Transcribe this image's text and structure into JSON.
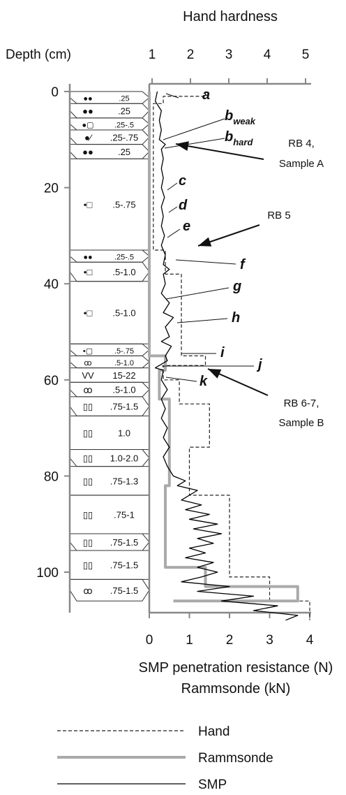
{
  "chart_data": {
    "type": "line",
    "top_axis": {
      "title": "Hand hardness",
      "ticks": [
        "1",
        "2",
        "3",
        "4",
        "5"
      ]
    },
    "depth_axis": {
      "title": "Depth (cm)",
      "ticks": [
        0,
        20,
        40,
        60,
        80,
        100
      ],
      "ylim": [
        0,
        110
      ],
      "inverted": true
    },
    "bottom_axis": {
      "title_line1": "SMP penetration resistance (N)",
      "title_line2": "Rammsonde (kN)",
      "ticks": [
        0,
        1,
        2,
        3,
        4
      ],
      "xlim": [
        0,
        4
      ]
    },
    "layers": [
      {
        "top": 0,
        "bottom": 2.5,
        "shape": "round",
        "symbols": "●●",
        "size": ".25"
      },
      {
        "top": 2.5,
        "bottom": 5.5,
        "shape": "round",
        "symbols": "●●",
        "size": ".25"
      },
      {
        "top": 5.5,
        "bottom": 8,
        "shape": "faceted",
        "symbols": "●▢",
        "size": ".25-.5"
      },
      {
        "top": 8,
        "bottom": 11,
        "shape": "mixed",
        "symbols": "●⁄",
        "size": ".25-.75"
      },
      {
        "top": 11,
        "bottom": 14,
        "shape": "round",
        "symbols": "●●",
        "size": ".25"
      },
      {
        "top": 14,
        "bottom": 33,
        "shape": "mixed",
        "symbols": "•□",
        "size": ".5-.75"
      },
      {
        "top": 33,
        "bottom": 35.5,
        "shape": "round",
        "symbols": "●●",
        "size": ".25-.5"
      },
      {
        "top": 35.5,
        "bottom": 39.5,
        "shape": "mixed",
        "symbols": "•□",
        "size": ".5-1.0"
      },
      {
        "top": 39.5,
        "bottom": 52.5,
        "shape": "mixed",
        "symbols": "•□",
        "size": ".5-1.0"
      },
      {
        "top": 52.5,
        "bottom": 55,
        "shape": "faceted",
        "symbols": "•▢",
        "size": ".5-.75"
      },
      {
        "top": 55,
        "bottom": 57.5,
        "shape": "cluster",
        "symbols": "ꝏ",
        "size": ".5-1.0"
      },
      {
        "top": 57.5,
        "bottom": 60.5,
        "shape": "plain",
        "symbols": "VV",
        "size": "15-22"
      },
      {
        "top": 60.5,
        "bottom": 63.5,
        "shape": "cluster",
        "symbols": "ꝏ",
        "size": ".5-1.0"
      },
      {
        "top": 63.5,
        "bottom": 67.5,
        "shape": "cup",
        "symbols": "▯▯",
        "size": ".75-1.5"
      },
      {
        "top": 67.5,
        "bottom": 74.5,
        "shape": "cup",
        "symbols": "▯▯",
        "size": "1.0"
      },
      {
        "top": 74.5,
        "bottom": 78,
        "shape": "cup",
        "symbols": "▯▯",
        "size": "1.0-2.0"
      },
      {
        "top": 78,
        "bottom": 84,
        "shape": "cup",
        "symbols": "▯▯",
        "size": ".75-1.3"
      },
      {
        "top": 84,
        "bottom": 92,
        "shape": "cup",
        "symbols": "▯▯",
        "size": ".75-1"
      },
      {
        "top": 92,
        "bottom": 95.5,
        "shape": "cup",
        "symbols": "▯▯",
        "size": ".75-1.5"
      },
      {
        "top": 95.5,
        "bottom": 101.5,
        "shape": "cup",
        "symbols": "▯▯",
        "size": ".75-1.5"
      },
      {
        "top": 101.5,
        "bottom": 106,
        "shape": "cluster",
        "symbols": "ꝏ",
        "size": ".75-1.5"
      }
    ],
    "series": [
      {
        "name": "Hand",
        "style": "dashed",
        "color": "#222222",
        "points": [
          [
            1.4,
            0
          ],
          [
            1.4,
            1
          ],
          [
            0.35,
            1
          ],
          [
            0.35,
            2.5
          ],
          [
            0.1,
            2.5
          ],
          [
            0.1,
            33
          ],
          [
            0.4,
            33
          ],
          [
            0.4,
            38
          ],
          [
            0.8,
            38
          ],
          [
            0.8,
            55
          ],
          [
            1.4,
            55
          ],
          [
            1.4,
            57
          ],
          [
            0.35,
            57
          ],
          [
            0.35,
            60
          ],
          [
            0.75,
            60
          ],
          [
            0.75,
            65
          ],
          [
            1.5,
            65
          ],
          [
            1.5,
            74
          ],
          [
            1.0,
            74
          ],
          [
            1.0,
            84
          ],
          [
            2.0,
            84
          ],
          [
            2.0,
            101
          ],
          [
            3.0,
            101
          ],
          [
            3.0,
            106
          ],
          [
            4.0,
            106
          ],
          [
            4.0,
            110
          ]
        ]
      },
      {
        "name": "Rammsonde",
        "style": "solid",
        "color": "#aaaaaa",
        "points": [
          [
            0,
            0
          ],
          [
            0,
            55
          ],
          [
            0.4,
            55
          ],
          [
            0.4,
            58
          ],
          [
            0.25,
            58
          ],
          [
            0.25,
            64
          ],
          [
            0.5,
            64
          ],
          [
            0.5,
            82
          ],
          [
            0.4,
            82
          ],
          [
            0.4,
            99
          ],
          [
            1.4,
            99
          ],
          [
            1.4,
            103
          ],
          [
            3.7,
            103
          ],
          [
            3.7,
            106
          ],
          [
            0.6,
            106
          ]
        ]
      },
      {
        "name": "SMP",
        "style": "solid",
        "color": "#000000",
        "points": [
          [
            0.2,
            0
          ],
          [
            0.15,
            2
          ],
          [
            0.3,
            4
          ],
          [
            0.25,
            6
          ],
          [
            0.3,
            8
          ],
          [
            0.25,
            10
          ],
          [
            0.4,
            11
          ],
          [
            0.3,
            12
          ],
          [
            0.35,
            14
          ],
          [
            0.3,
            16
          ],
          [
            0.35,
            18
          ],
          [
            0.3,
            20
          ],
          [
            0.38,
            22
          ],
          [
            0.3,
            24
          ],
          [
            0.35,
            26
          ],
          [
            0.3,
            28
          ],
          [
            0.38,
            30
          ],
          [
            0.3,
            32
          ],
          [
            0.4,
            34
          ],
          [
            0.35,
            36
          ],
          [
            0.5,
            37
          ],
          [
            0.35,
            38
          ],
          [
            0.4,
            40
          ],
          [
            0.3,
            42
          ],
          [
            0.5,
            44
          ],
          [
            0.35,
            46
          ],
          [
            0.6,
            47
          ],
          [
            0.4,
            49
          ],
          [
            0.5,
            51
          ],
          [
            0.3,
            52
          ],
          [
            0.55,
            53
          ],
          [
            0.4,
            55
          ],
          [
            0.45,
            56
          ],
          [
            0.15,
            57.5
          ],
          [
            0.35,
            58
          ],
          [
            0.3,
            60
          ],
          [
            0.45,
            62
          ],
          [
            0.3,
            64
          ],
          [
            0.4,
            66
          ],
          [
            0.3,
            68
          ],
          [
            0.45,
            70
          ],
          [
            0.35,
            72
          ],
          [
            0.5,
            74
          ],
          [
            0.35,
            76
          ],
          [
            0.45,
            78
          ],
          [
            0.6,
            80
          ],
          [
            0.9,
            81
          ],
          [
            0.7,
            82
          ],
          [
            1.2,
            83
          ],
          [
            0.8,
            85
          ],
          [
            1.3,
            86
          ],
          [
            0.9,
            87
          ],
          [
            1.5,
            88
          ],
          [
            1.0,
            89
          ],
          [
            1.7,
            90
          ],
          [
            1.1,
            91
          ],
          [
            1.8,
            92
          ],
          [
            1.2,
            93
          ],
          [
            1.6,
            94
          ],
          [
            1.0,
            95
          ],
          [
            1.4,
            96
          ],
          [
            0.9,
            97
          ],
          [
            1.6,
            98
          ],
          [
            1.2,
            99
          ],
          [
            1.7,
            100
          ],
          [
            1.3,
            101
          ],
          [
            0.8,
            102
          ],
          [
            2.0,
            103
          ],
          [
            1.2,
            104
          ],
          [
            2.6,
            105
          ],
          [
            1.8,
            106
          ],
          [
            3.2,
            107
          ],
          [
            2.6,
            108
          ],
          [
            3.7,
            109
          ],
          [
            3.4,
            110
          ]
        ]
      }
    ],
    "annotations": [
      {
        "label": "a",
        "kind": "letter"
      },
      {
        "label": "b",
        "sub": "weak",
        "kind": "letter"
      },
      {
        "label": "b",
        "sub": "hard",
        "kind": "letter"
      },
      {
        "label": "c",
        "kind": "letter"
      },
      {
        "label": "d",
        "kind": "letter"
      },
      {
        "label": "e",
        "kind": "letter"
      },
      {
        "label": "f",
        "kind": "letter"
      },
      {
        "label": "g",
        "kind": "letter"
      },
      {
        "label": "h",
        "kind": "letter"
      },
      {
        "label": "i",
        "kind": "letter"
      },
      {
        "label": "j",
        "kind": "letter"
      },
      {
        "label": "k",
        "kind": "letter"
      },
      {
        "label": "RB 4,",
        "label2": "Sample A",
        "kind": "arrow"
      },
      {
        "label": "RB 5",
        "kind": "arrow"
      },
      {
        "label": "RB 6-7,",
        "label2": "Sample B",
        "kind": "arrow"
      }
    ],
    "legend": {
      "placement": "bottom",
      "entries": [
        "Hand",
        "Rammsonde",
        "SMP"
      ]
    }
  }
}
